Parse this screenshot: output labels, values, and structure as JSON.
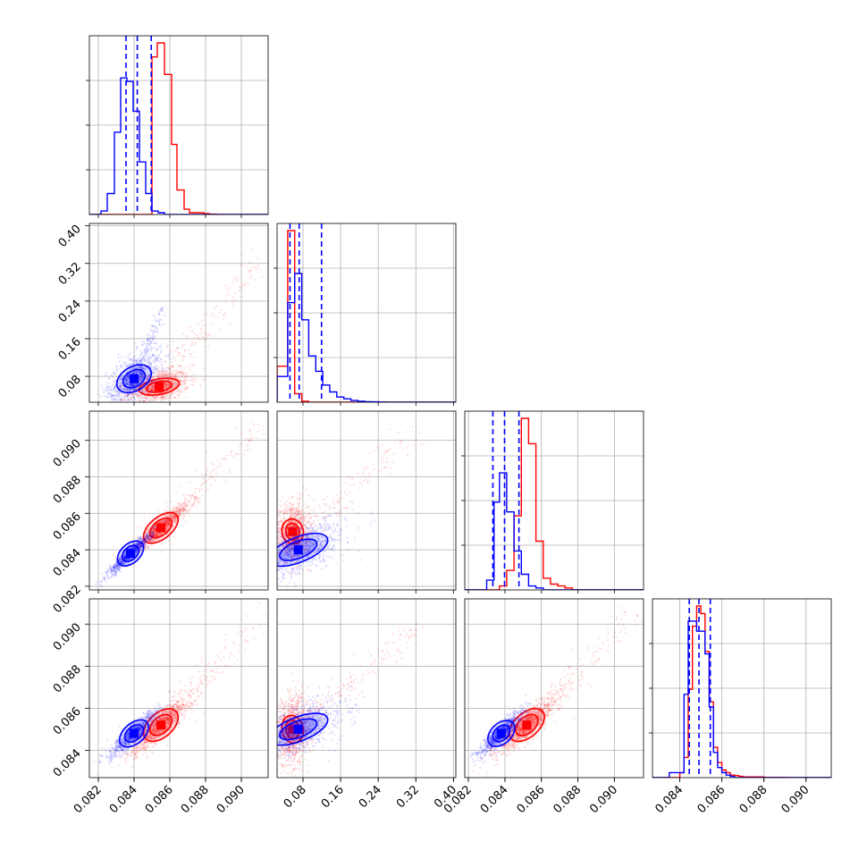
{
  "chart_data": {
    "type": "corner",
    "grid": true,
    "series": [
      {
        "name": "",
        "color": "#0000ff"
      },
      {
        "name": "",
        "color": "#ff0000"
      }
    ],
    "params": [
      {
        "range": [
          0.0815,
          0.0915
        ],
        "ticks": [
          "0.082",
          "0.084",
          "0.086",
          "0.088",
          "0.090"
        ],
        "tick_values": [
          0.082,
          0.084,
          0.086,
          0.088,
          0.09
        ]
      },
      {
        "range": [
          0.025,
          0.405
        ],
        "ticks": [
          "0.08",
          "0.16",
          "0.24",
          "0.32",
          "0.40"
        ],
        "tick_values": [
          0.08,
          0.16,
          0.24,
          0.32,
          0.4
        ]
      },
      {
        "range": [
          0.0818,
          0.0916
        ],
        "ticks": [
          "0.082",
          "0.084",
          "0.086",
          "0.088",
          "0.090"
        ],
        "tick_values": [
          0.082,
          0.084,
          0.086,
          0.088,
          0.09
        ]
      },
      {
        "range": [
          0.0827,
          0.0912
        ],
        "ticks": [
          "0.084",
          "0.086",
          "0.088",
          "0.090"
        ],
        "tick_values": [
          0.084,
          0.086,
          0.088,
          0.09
        ]
      }
    ],
    "quantile_lines": [
      [
        0.08355,
        0.08418,
        0.08496
      ],
      [
        0.0524,
        0.072,
        0.1195
      ],
      [
        0.08334,
        0.08398,
        0.08477
      ],
      [
        0.08445,
        0.08491,
        0.08545
      ]
    ],
    "histograms": [
      {
        "blue": {
          "edges": [
            0.0815,
            0.08215,
            0.0825,
            0.0829,
            0.08325,
            0.0836,
            0.08395,
            0.0843,
            0.08465,
            0.085,
            0.08535,
            0.0857,
            0.0861,
            0.0864,
            0.0868,
            0.0871,
            0.0875,
            0.0915
          ],
          "counts": [
            0,
            0.02,
            0.12,
            0.47,
            0.78,
            0.76,
            0.59,
            0.3,
            0.12,
            0.02,
            0.01,
            0,
            0,
            0,
            0,
            0,
            0
          ]
        },
        "red": {
          "edges": [
            0.0815,
            0.085,
            0.0853,
            0.0857,
            0.0861,
            0.0864,
            0.0868,
            0.0871,
            0.0875,
            0.0879,
            0.0882,
            0.0886,
            0.0915
          ],
          "counts": [
            0,
            0.9,
            0.98,
            0.8,
            0.4,
            0.14,
            0.03,
            0.01,
            0.01,
            0.005,
            0.002,
            0
          ],
          "prefix": [
            [
              0.084,
              0.12
            ],
            [
              0.0843,
              0.24
            ],
            [
              0.0846,
              0.5
            ],
            [
              0.085,
              0.9
            ]
          ]
        }
      },
      {
        "blue": {
          "edges": [
            0.025,
            0.0476,
            0.0625,
            0.0774,
            0.0923,
            0.1072,
            0.1221,
            0.137,
            0.152,
            0.167,
            0.182,
            0.197,
            0.212,
            0.227,
            0.243,
            0.258,
            0.405
          ],
          "counts": [
            0.15,
            0.58,
            0.75,
            0.48,
            0.27,
            0.18,
            0.1,
            0.06,
            0.03,
            0.02,
            0.01,
            0.005,
            0.003,
            0.002,
            0.001,
            0
          ]
        },
        "red": {
          "edges": [
            0.025,
            0.0476,
            0.0625,
            0.0774,
            0.0923,
            0.405
          ],
          "counts": [
            0.21,
            1.0,
            0.05,
            0.005,
            0
          ]
        }
      },
      {
        "blue": {
          "edges": [
            0.0818,
            0.083,
            0.0834,
            0.0837,
            0.0841,
            0.0845,
            0.0849,
            0.0853,
            0.0857,
            0.0861,
            0.0916
          ],
          "counts": [
            0,
            0.05,
            0.45,
            0.6,
            0.4,
            0.2,
            0.08,
            0.02,
            0.01,
            0
          ]
        },
        "red": {
          "edges": [
            0.0818,
            0.0837,
            0.0841,
            0.0845,
            0.0849,
            0.0853,
            0.0857,
            0.0861,
            0.0865,
            0.0869,
            0.0873,
            0.0877,
            0.0916
          ],
          "counts": [
            0,
            0.02,
            0.1,
            0.38,
            0.88,
            0.75,
            0.25,
            0.06,
            0.03,
            0.02,
            0.01,
            0
          ]
        }
      },
      {
        "blue": {
          "edges": [
            0.0827,
            0.0835,
            0.084,
            0.0842,
            0.0844,
            0.0846,
            0.0848,
            0.085,
            0.0852,
            0.0854,
            0.0856,
            0.0858,
            0.086,
            0.0862,
            0.0864,
            0.0866,
            0.0912
          ],
          "counts": [
            0,
            0.02,
            0.02,
            0.33,
            0.62,
            0.62,
            0.58,
            0.58,
            0.49,
            0.28,
            0.1,
            0.04,
            0.02,
            0.01,
            0.005,
            0
          ]
        },
        "red": {
          "edges": [
            0.0827,
            0.084,
            0.0842,
            0.0844,
            0.0846,
            0.0848,
            0.085,
            0.0852,
            0.0854,
            0.0856,
            0.0858,
            0.086,
            0.0862,
            0.0864,
            0.0866,
            0.0868,
            0.087,
            0.088,
            0.089,
            0.0912
          ],
          "counts": [
            0,
            0.02,
            0.08,
            0.35,
            0.6,
            0.68,
            0.65,
            0.5,
            0.3,
            0.12,
            0.06,
            0.03,
            0.02,
            0.01,
            0.008,
            0.005,
            0.003,
            0.001,
            0
          ]
        }
      }
    ],
    "scatter_clusters": {
      "1-0": {
        "blue": {
          "center": [
            0.084,
            0.075
          ],
          "spread": [
            0.00055,
            0.022
          ],
          "corr": 0.55,
          "tail": [
            [
              0.0838,
              0.06
            ],
            [
              0.0856,
              0.22
            ]
          ]
        },
        "red": {
          "center": [
            0.0854,
            0.058
          ],
          "spread": [
            0.0006,
            0.012
          ],
          "corr": 0.35,
          "tail": [
            [
              0.085,
              0.05
            ],
            [
              0.0912,
              0.33
            ]
          ]
        }
      },
      "2-0": {
        "blue": {
          "center": [
            0.0838,
            0.0838
          ],
          "spread": [
            0.00045,
            0.00042
          ],
          "corr": 0.95
        },
        "red": {
          "center": [
            0.0855,
            0.0852
          ],
          "spread": [
            0.0006,
            0.0005
          ],
          "corr": 0.95,
          "tail": [
            [
              0.085,
              0.0848
            ],
            [
              0.0912,
              0.0908
            ]
          ]
        }
      },
      "2-1": {
        "blue": {
          "center": [
            0.07,
            0.084
          ],
          "spread": [
            0.035,
            0.0006
          ],
          "corr": 0.6
        },
        "red": {
          "center": [
            0.058,
            0.085
          ],
          "spread": [
            0.012,
            0.0006
          ],
          "corr": 0.1,
          "tail": [
            [
              0.05,
              0.0845
            ],
            [
              0.33,
              0.0905
            ]
          ]
        }
      },
      "3-0": {
        "blue": {
          "center": [
            0.084,
            0.0848
          ],
          "spread": [
            0.0005,
            0.0004
          ],
          "corr": 0.9
        },
        "red": {
          "center": [
            0.0855,
            0.0852
          ],
          "spread": [
            0.0006,
            0.0005
          ],
          "corr": 0.9,
          "tail": [
            [
              0.085,
              0.0848
            ],
            [
              0.0912,
              0.0905
            ]
          ]
        }
      },
      "3-1": {
        "blue": {
          "center": [
            0.07,
            0.085
          ],
          "spread": [
            0.035,
            0.0005
          ],
          "corr": 0.6
        },
        "red": {
          "center": [
            0.058,
            0.085
          ],
          "spread": [
            0.012,
            0.0006
          ],
          "corr": 0.1,
          "tail": [
            [
              0.05,
              0.0848
            ],
            [
              0.33,
              0.09
            ]
          ]
        }
      },
      "3-2": {
        "blue": {
          "center": [
            0.0838,
            0.0848
          ],
          "spread": [
            0.00045,
            0.0004
          ],
          "corr": 0.9
        },
        "red": {
          "center": [
            0.0852,
            0.0852
          ],
          "spread": [
            0.0006,
            0.0005
          ],
          "corr": 0.9,
          "tail": [
            [
              0.0848,
              0.0848
            ],
            [
              0.0912,
              0.0905
            ]
          ]
        }
      }
    }
  }
}
